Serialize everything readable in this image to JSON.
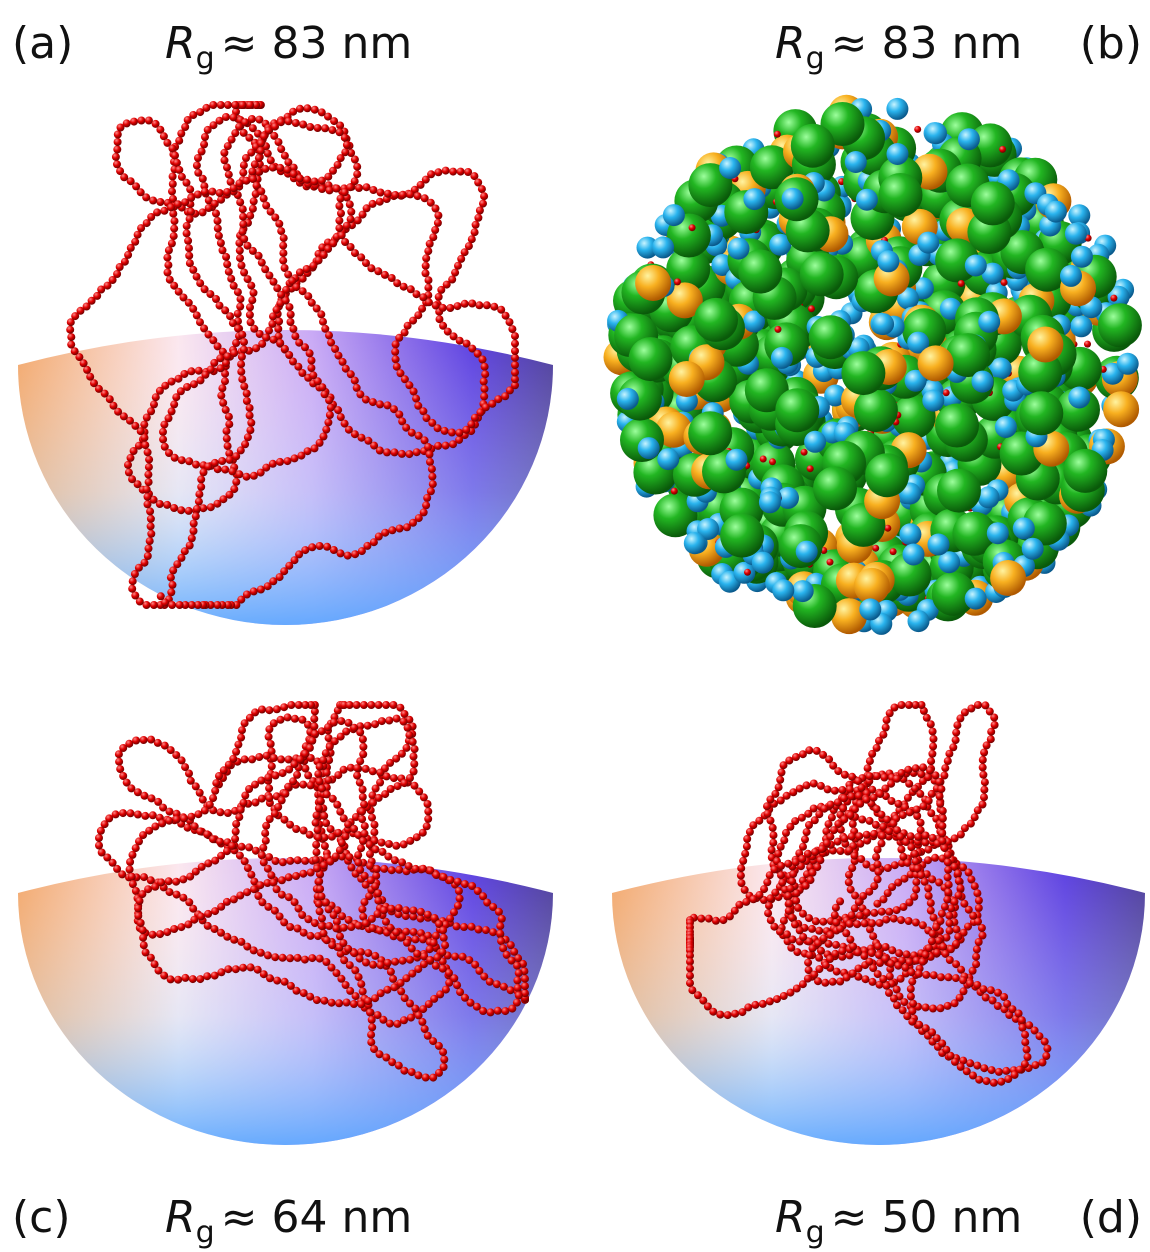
{
  "panels": [
    {
      "label": "(a)",
      "rg": {
        "symbol": "R",
        "subscript": "g",
        "text": "≈ 83 nm"
      }
    },
    {
      "label": "(b)",
      "rg": {
        "symbol": "R",
        "subscript": "g",
        "text": "≈ 83 nm"
      }
    },
    {
      "label": "(c)",
      "rg": {
        "symbol": "R",
        "subscript": "g",
        "text": "≈ 64 nm"
      }
    },
    {
      "label": "(d)",
      "rg": {
        "symbol": "R",
        "subscript": "g",
        "text": "≈ 50 nm"
      }
    }
  ]
}
